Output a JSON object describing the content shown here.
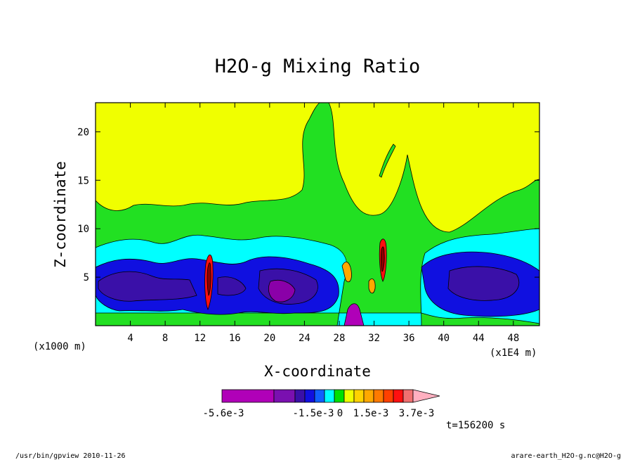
{
  "chart_data": {
    "type": "heatmap",
    "title": "H2O-g Mixing Ratio",
    "xlabel": "X-coordinate",
    "ylabel": "Z-coordinate",
    "x_unit": "(x1000 m)",
    "x_unit2": "(x1E4 m)",
    "xlim": [
      0,
      51
    ],
    "ylim": [
      0,
      23
    ],
    "xticks": [
      "4",
      "8",
      "12",
      "16",
      "20",
      "24",
      "28",
      "32",
      "36",
      "40",
      "44",
      "48"
    ],
    "yticks": [
      "5",
      "10",
      "15",
      "20"
    ],
    "colorbar": {
      "labels": [
        "-5.6e-3",
        "-1.5e-3",
        "0",
        "1.5e-3",
        "3.7e-3"
      ],
      "colors": [
        "#b000b8",
        "#7a10b0",
        "#3a10a8",
        "#1010e0",
        "#1060ff",
        "#00ffff",
        "#00e000",
        "#f0ff00",
        "#ffd200",
        "#ffa800",
        "#ff7a00",
        "#ff4000",
        "#ff1010",
        "#f07070",
        "#ffb0c0"
      ]
    },
    "regions": {
      "top": "#f0ff00",
      "green": "#22e022",
      "cyan": "#00ffff",
      "blue": "#1010e0",
      "navy": "#3a10a8",
      "purple": "#8a00a8",
      "magenta": "#b000b8",
      "orange": "#ffa800",
      "red": "#ff1010",
      "darkred": "#8b0000"
    },
    "time_label": "t=156200 s"
  },
  "footer": {
    "left": "/usr/bin/gpview  2010-11-26",
    "right": "arare-earth_H2O-g.nc@H2O-g"
  }
}
